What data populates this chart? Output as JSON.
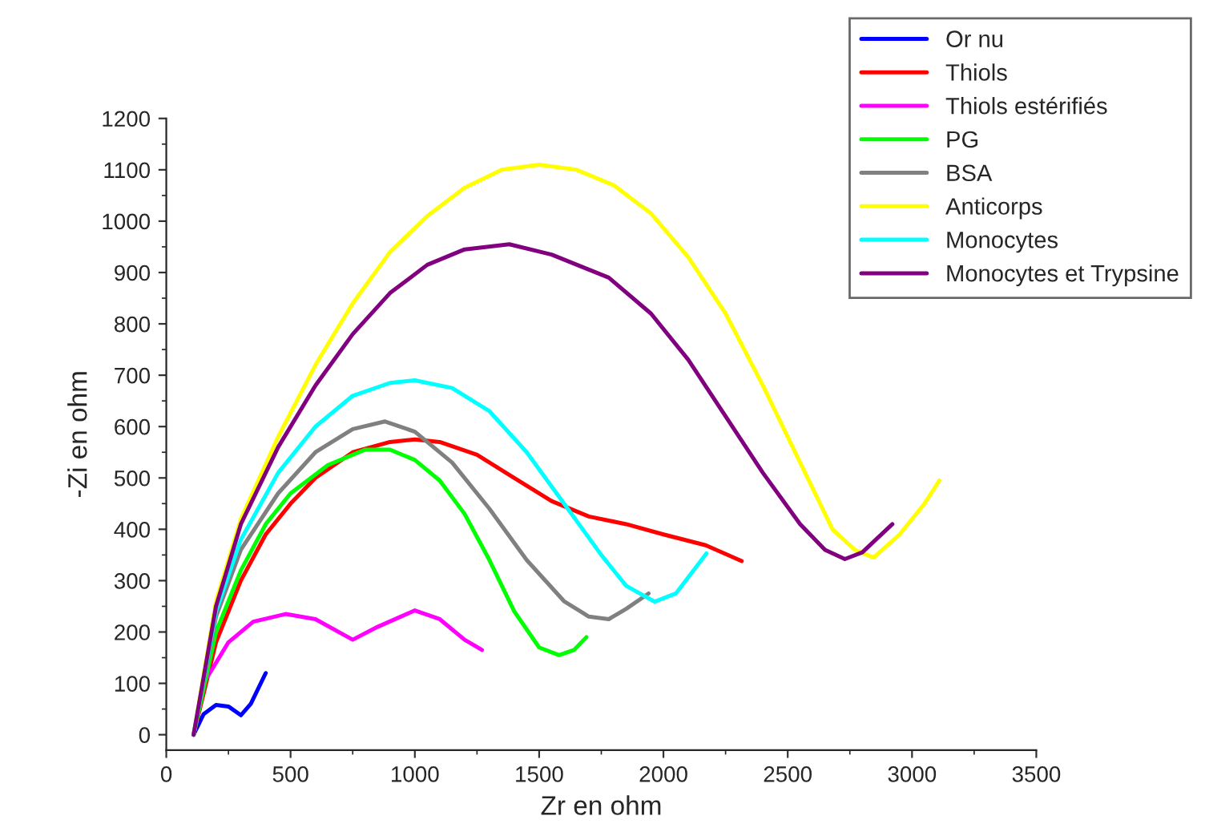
{
  "chart_data": {
    "type": "line",
    "xlabel": "Zr en ohm",
    "ylabel": "-Zi en ohm",
    "xlim": [
      0,
      3500
    ],
    "xticks": [
      0,
      500,
      1000,
      1500,
      2000,
      2500,
      3000,
      3500
    ],
    "ylim": [
      -30,
      1200
    ],
    "yticks": [
      0,
      100,
      200,
      300,
      400,
      500,
      600,
      700,
      800,
      900,
      1000,
      1100,
      1200
    ],
    "grid": false,
    "legend": "top right",
    "marker": "none",
    "line_style": "solid",
    "series": [
      {
        "name": "Or nu",
        "color": "#0000ff",
        "x": [
          110,
          150,
          200,
          250,
          300,
          340,
          400
        ],
        "values": [
          0,
          40,
          58,
          55,
          38,
          60,
          120
        ]
      },
      {
        "name": "Thiols",
        "color": "#ff0000",
        "x": [
          110,
          200,
          300,
          400,
          500,
          600,
          750,
          900,
          1000,
          1100,
          1250,
          1400,
          1550,
          1700,
          1850,
          2000,
          2170,
          2315
        ],
        "values": [
          0,
          180,
          300,
          390,
          450,
          500,
          550,
          570,
          575,
          570,
          545,
          500,
          455,
          425,
          410,
          390,
          369,
          338
        ]
      },
      {
        "name": "Thiols estérifiés",
        "color": "#ff00ff",
        "x": [
          110,
          150,
          250,
          350,
          480,
          600,
          750,
          850,
          1000,
          1100,
          1200,
          1270
        ],
        "values": [
          0,
          100,
          180,
          220,
          235,
          225,
          185,
          210,
          242,
          225,
          185,
          165
        ]
      },
      {
        "name": "PG",
        "color": "#00ff00",
        "x": [
          110,
          200,
          300,
          400,
          500,
          650,
          800,
          900,
          1000,
          1100,
          1200,
          1300,
          1400,
          1500,
          1580,
          1640,
          1690
        ],
        "values": [
          0,
          200,
          320,
          410,
          470,
          525,
          555,
          555,
          535,
          495,
          430,
          340,
          240,
          170,
          155,
          165,
          190
        ]
      },
      {
        "name": "BSA",
        "color": "#808080",
        "x": [
          110,
          200,
          300,
          450,
          600,
          750,
          880,
          1000,
          1150,
          1300,
          1450,
          1600,
          1700,
          1780,
          1850,
          1940
        ],
        "values": [
          0,
          230,
          360,
          470,
          550,
          595,
          610,
          590,
          530,
          440,
          340,
          260,
          230,
          225,
          245,
          275
        ]
      },
      {
        "name": "Anticorps",
        "color": "#ffff00",
        "x": [
          110,
          200,
          300,
          450,
          600,
          750,
          900,
          1050,
          1200,
          1350,
          1500,
          1650,
          1800,
          1950,
          2100,
          2250,
          2400,
          2550,
          2680,
          2770,
          2845,
          2950,
          3050,
          3110
        ],
        "values": [
          0,
          260,
          420,
          580,
          720,
          840,
          940,
          1010,
          1065,
          1100,
          1110,
          1100,
          1070,
          1015,
          930,
          820,
          680,
          530,
          400,
          360,
          345,
          390,
          450,
          495
        ]
      },
      {
        "name": "Monocytes",
        "color": "#00ffff",
        "x": [
          110,
          200,
          300,
          450,
          600,
          750,
          900,
          1000,
          1150,
          1300,
          1450,
          1600,
          1750,
          1850,
          1965,
          2050,
          2173
        ],
        "values": [
          0,
          240,
          380,
          510,
          600,
          660,
          685,
          690,
          675,
          630,
          550,
          450,
          350,
          290,
          259,
          275,
          353
        ]
      },
      {
        "name": "Monocytes et Trypsine",
        "color": "#800080",
        "x": [
          110,
          200,
          300,
          450,
          600,
          750,
          900,
          1050,
          1200,
          1380,
          1550,
          1780,
          1950,
          2100,
          2250,
          2400,
          2550,
          2650,
          2730,
          2800,
          2921
        ],
        "values": [
          0,
          250,
          410,
          560,
          680,
          780,
          860,
          915,
          945,
          955,
          935,
          890,
          820,
          730,
          620,
          510,
          410,
          360,
          342,
          355,
          410
        ]
      }
    ]
  }
}
